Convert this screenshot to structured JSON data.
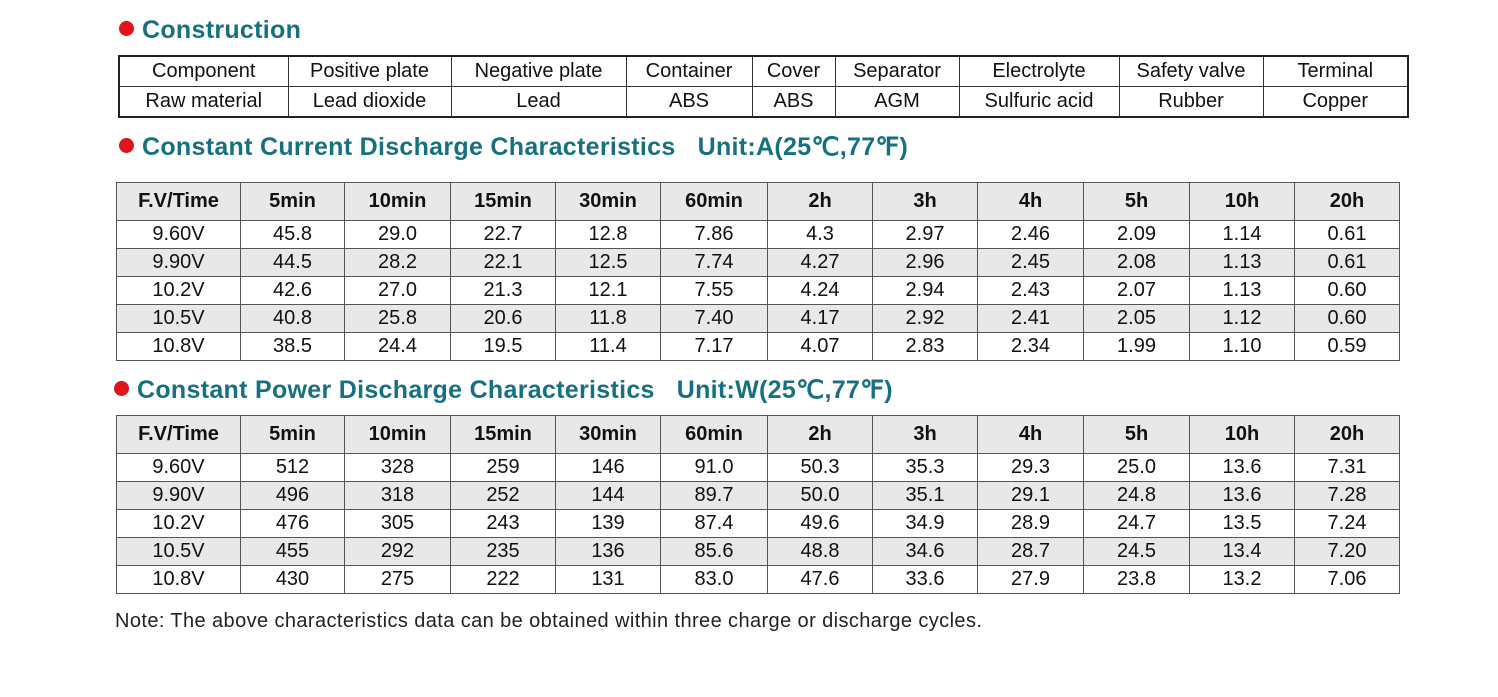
{
  "construction": {
    "title": "Construction",
    "table": {
      "rows": [
        [
          "Component",
          "Positive plate",
          "Negative plate",
          "Container",
          "Cover",
          "Separator",
          "Electrolyte",
          "Safety valve",
          "Terminal"
        ],
        [
          "Raw material",
          "Lead dioxide",
          "Lead",
          "ABS",
          "ABS",
          "AGM",
          "Sulfuric acid",
          "Rubber",
          "Copper"
        ]
      ]
    }
  },
  "constant_current": {
    "title": "Constant Current Discharge Characteristics",
    "unit": "Unit:A(25℃,77℉)",
    "table": {
      "header": [
        "F.V/Time",
        "5min",
        "10min",
        "15min",
        "30min",
        "60min",
        "2h",
        "3h",
        "4h",
        "5h",
        "10h",
        "20h"
      ],
      "rows": [
        [
          "9.60V",
          "45.8",
          "29.0",
          "22.7",
          "12.8",
          "7.86",
          "4.3",
          "2.97",
          "2.46",
          "2.09",
          "1.14",
          "0.61"
        ],
        [
          "9.90V",
          "44.5",
          "28.2",
          "22.1",
          "12.5",
          "7.74",
          "4.27",
          "2.96",
          "2.45",
          "2.08",
          "1.13",
          "0.61"
        ],
        [
          "10.2V",
          "42.6",
          "27.0",
          "21.3",
          "12.1",
          "7.55",
          "4.24",
          "2.94",
          "2.43",
          "2.07",
          "1.13",
          "0.60"
        ],
        [
          "10.5V",
          "40.8",
          "25.8",
          "20.6",
          "11.8",
          "7.40",
          "4.17",
          "2.92",
          "2.41",
          "2.05",
          "1.12",
          "0.60"
        ],
        [
          "10.8V",
          "38.5",
          "24.4",
          "19.5",
          "11.4",
          "7.17",
          "4.07",
          "2.83",
          "2.34",
          "1.99",
          "1.10",
          "0.59"
        ]
      ]
    }
  },
  "constant_power": {
    "title": "Constant Power Discharge Characteristics",
    "unit": "Unit:W(25℃,77℉)",
    "table": {
      "header": [
        "F.V/Time",
        "5min",
        "10min",
        "15min",
        "30min",
        "60min",
        "2h",
        "3h",
        "4h",
        "5h",
        "10h",
        "20h"
      ],
      "rows": [
        [
          "9.60V",
          "512",
          "328",
          "259",
          "146",
          "91.0",
          "50.3",
          "35.3",
          "29.3",
          "25.0",
          "13.6",
          "7.31"
        ],
        [
          "9.90V",
          "496",
          "318",
          "252",
          "144",
          "89.7",
          "50.0",
          "35.1",
          "29.1",
          "24.8",
          "13.6",
          "7.28"
        ],
        [
          "10.2V",
          "476",
          "305",
          "243",
          "139",
          "87.4",
          "49.6",
          "34.9",
          "28.9",
          "24.7",
          "13.5",
          "7.24"
        ],
        [
          "10.5V",
          "455",
          "292",
          "235",
          "136",
          "85.6",
          "48.8",
          "34.6",
          "28.7",
          "24.5",
          "13.4",
          "7.20"
        ],
        [
          "10.8V",
          "430",
          "275",
          "222",
          "131",
          "83.0",
          "47.6",
          "33.6",
          "27.9",
          "23.8",
          "13.2",
          "7.06"
        ]
      ]
    }
  },
  "note": "Note: The above characteristics data can be obtained within three charge or discharge cycles."
}
